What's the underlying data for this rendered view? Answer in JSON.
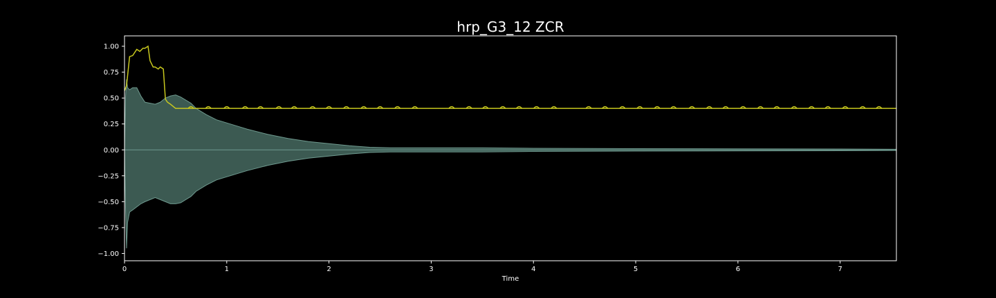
{
  "chart_data": {
    "type": "line",
    "title": "hrp_G3_12 ZCR",
    "xlabel": "Time",
    "ylabel": "",
    "xlim": [
      0,
      7.55
    ],
    "ylim": [
      -1.07,
      1.1
    ],
    "x_ticks": [
      0,
      1,
      2,
      3,
      4,
      5,
      6,
      7
    ],
    "x_tick_labels": [
      "0",
      "1",
      "2",
      "3",
      "4",
      "5",
      "6",
      "7"
    ],
    "y_ticks": [
      1.0,
      0.75,
      0.5,
      0.25,
      0.0,
      -0.25,
      -0.5,
      -0.75,
      -1.0
    ],
    "y_tick_labels": [
      "1.00",
      "0.75",
      "0.50",
      "0.25",
      "0.00",
      "−0.25",
      "−0.50",
      "−0.75",
      "−1.00"
    ],
    "grid": false,
    "colors": {
      "background": "#000000",
      "frame": "#ffffff",
      "waveform": "#3c5a52",
      "waveform_edge": "#6f9a8f",
      "zcr": "#c8c81e"
    },
    "series": [
      {
        "kind": "waveform-envelope",
        "x": [
          0,
          0.01,
          0.02,
          0.03,
          0.05,
          0.08,
          0.12,
          0.16,
          0.2,
          0.25,
          0.3,
          0.35,
          0.4,
          0.45,
          0.5,
          0.55,
          0.6,
          0.65,
          0.7,
          0.8,
          0.9,
          1.0,
          1.1,
          1.2,
          1.4,
          1.6,
          1.8,
          2.0,
          2.2,
          2.4,
          2.6,
          3.0,
          3.5,
          4.0,
          5.0,
          6.0,
          7.0,
          7.55
        ],
        "upper": [
          0.0,
          0.5,
          0.68,
          0.6,
          0.58,
          0.6,
          0.6,
          0.52,
          0.46,
          0.45,
          0.44,
          0.46,
          0.5,
          0.52,
          0.53,
          0.51,
          0.48,
          0.45,
          0.4,
          0.34,
          0.29,
          0.26,
          0.23,
          0.2,
          0.15,
          0.11,
          0.08,
          0.06,
          0.04,
          0.025,
          0.02,
          0.02,
          0.02,
          0.015,
          0.012,
          0.01,
          0.008,
          0.006
        ],
        "lower": [
          0.0,
          -0.55,
          -0.95,
          -0.7,
          -0.6,
          -0.58,
          -0.55,
          -0.52,
          -0.5,
          -0.48,
          -0.46,
          -0.48,
          -0.5,
          -0.52,
          -0.52,
          -0.51,
          -0.48,
          -0.45,
          -0.4,
          -0.34,
          -0.29,
          -0.26,
          -0.23,
          -0.2,
          -0.15,
          -0.11,
          -0.08,
          -0.06,
          -0.04,
          -0.025,
          -0.02,
          -0.02,
          -0.02,
          -0.015,
          -0.012,
          -0.01,
          -0.008,
          -0.006
        ]
      },
      {
        "kind": "zcr",
        "x": [
          0,
          0.02,
          0.05,
          0.08,
          0.1,
          0.12,
          0.15,
          0.18,
          0.2,
          0.23,
          0.25,
          0.28,
          0.3,
          0.33,
          0.35,
          0.38,
          0.4,
          0.42,
          0.45,
          0.5,
          1.0,
          2.0,
          3.0,
          4.0,
          5.0,
          6.0,
          7.0,
          7.55
        ],
        "y": [
          0.57,
          0.62,
          0.9,
          0.91,
          0.94,
          0.97,
          0.95,
          0.98,
          0.98,
          1.0,
          0.86,
          0.8,
          0.8,
          0.78,
          0.8,
          0.78,
          0.49,
          0.46,
          0.44,
          0.4,
          0.4,
          0.4,
          0.4,
          0.4,
          0.4,
          0.4,
          0.4,
          0.4
        ]
      }
    ],
    "zcr_bumps": [
      0.65,
      0.82,
      1.0,
      1.18,
      1.33,
      1.51,
      1.66,
      1.84,
      2.0,
      2.17,
      2.34,
      2.5,
      2.67,
      2.84,
      3.2,
      3.37,
      3.53,
      3.7,
      3.86,
      4.03,
      4.2,
      4.54,
      4.7,
      4.87,
      5.04,
      5.21,
      5.37,
      5.55,
      5.72,
      5.88,
      6.05,
      6.22,
      6.38,
      6.55,
      6.72,
      6.88,
      7.05,
      7.22,
      7.38
    ]
  }
}
